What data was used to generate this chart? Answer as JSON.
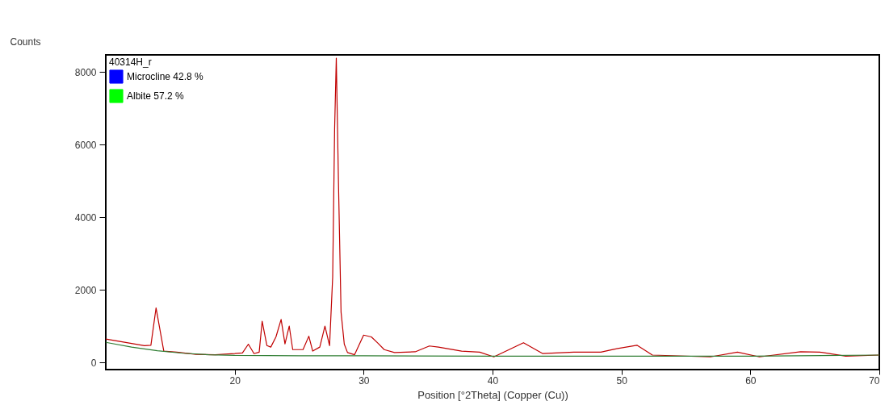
{
  "chart_data": {
    "type": "line",
    "xlabel": "Position [°2Theta] (Copper (Cu))",
    "ylabel": "Counts",
    "legend_title": "40314H_r",
    "legend": "top left",
    "grid": false,
    "marker": "none",
    "line_style": "solid",
    "xlim": [
      10,
      70
    ],
    "xticks": [
      20,
      30,
      40,
      50,
      60,
      70
    ],
    "ylim": [
      -200,
      8470
    ],
    "yticks": [
      0,
      2000,
      4000,
      6000,
      8000
    ],
    "series": [
      {
        "color": "#c00000",
        "x": [
          10,
          11,
          12,
          13,
          13.5,
          13.9,
          14.5,
          15.5,
          17,
          18.5,
          20,
          20.6,
          21.06,
          21.5,
          21.9,
          22.13,
          22.5,
          22.8,
          23.2,
          23.6,
          23.9,
          24.23,
          24.5,
          25.3,
          25.75,
          26.05,
          26.6,
          27.0,
          27.36,
          27.6,
          27.75,
          27.88,
          28.05,
          28.25,
          28.5,
          28.75,
          29.3,
          30.0,
          30.6,
          31.1,
          31.6,
          32.4,
          34.0,
          35.1,
          35.8,
          37.6,
          39.0,
          40.1,
          42.4,
          43.9,
          46.3,
          48.4,
          49.4,
          51.2,
          52.4,
          56.9,
          59.0,
          60.7,
          63.9,
          65.4,
          67.4,
          70
        ],
        "values": [
          640,
          580,
          520,
          460,
          470,
          1500,
          310,
          280,
          220,
          210,
          240,
          260,
          500,
          240,
          280,
          1130,
          460,
          420,
          700,
          1180,
          510,
          1000,
          350,
          350,
          720,
          310,
          420,
          1000,
          460,
          2350,
          6420,
          8380,
          4940,
          1380,
          500,
          270,
          210,
          750,
          700,
          530,
          350,
          270,
          290,
          450,
          420,
          310,
          280,
          150,
          540,
          240,
          280,
          280,
          360,
          470,
          200,
          150,
          280,
          150,
          290,
          280,
          170,
          200
        ]
      },
      {
        "color": "#2e7d32",
        "x": [
          10,
          12,
          14,
          16,
          18,
          20,
          25,
          30,
          40,
          50,
          60,
          70
        ],
        "values": [
          550,
          420,
          320,
          250,
          210,
          190,
          180,
          180,
          170,
          170,
          170,
          200
        ]
      },
      {
        "name": "Microcline 42.8 %",
        "color": "#0000ff"
      },
      {
        "name": "Albite 57.2 %",
        "color": "#00ff00"
      }
    ]
  }
}
